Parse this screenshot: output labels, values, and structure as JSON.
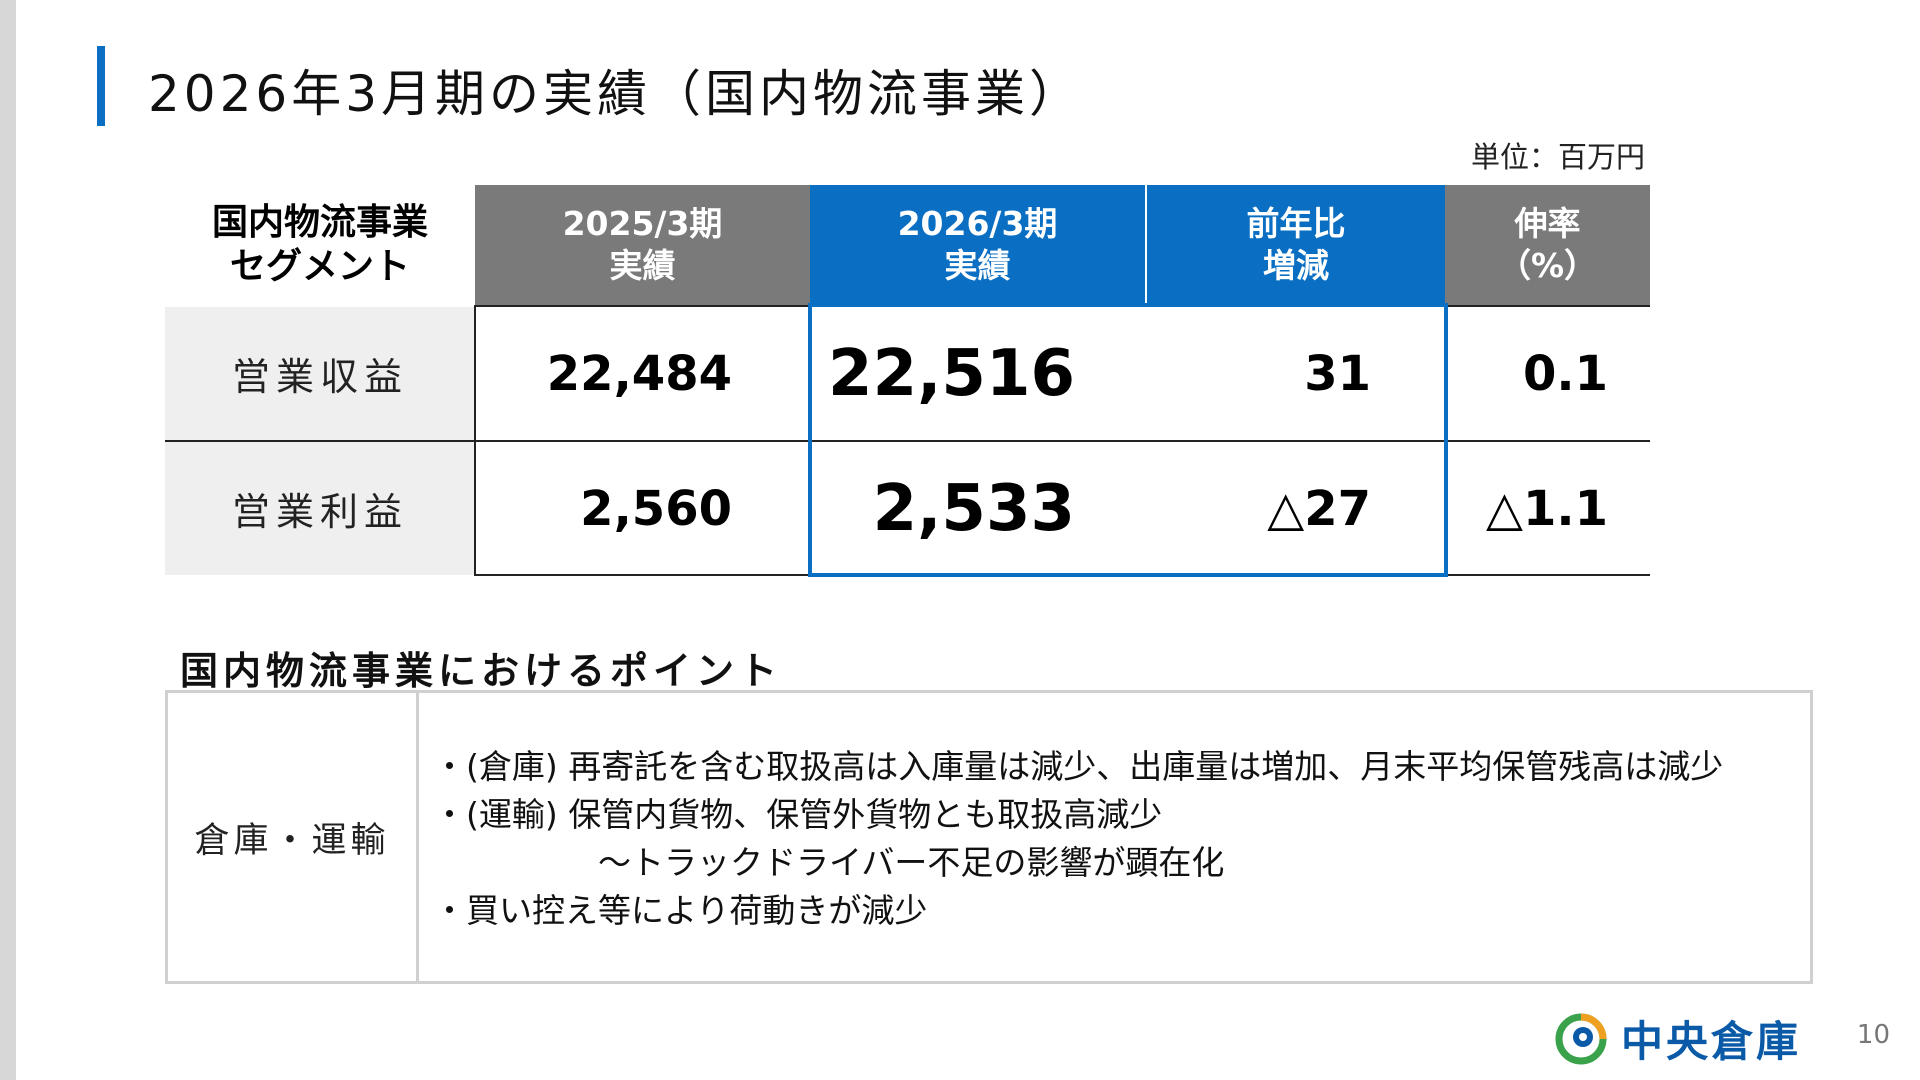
{
  "slide": {
    "title": "2026年3月期の実績（国内物流事業）",
    "unit_label": "単位：百万円",
    "page_number": "10"
  },
  "results_table": {
    "segment_header": [
      "国内物流事業",
      "セグメント"
    ],
    "columns": [
      {
        "line1": "2025/3期",
        "line2": "実績"
      },
      {
        "line1": "2026/3期",
        "line2": "実績"
      },
      {
        "line1": "前年比",
        "line2": "増減"
      },
      {
        "line1": "伸率",
        "line2": "（%）"
      }
    ],
    "rows": [
      {
        "label": "営業収益",
        "values": [
          "22,484",
          "22,516",
          "31",
          "0.1"
        ]
      },
      {
        "label": "営業利益",
        "values": [
          "2,560",
          "2,533",
          "△27",
          "△1.1"
        ]
      }
    ]
  },
  "points": {
    "heading": "国内物流事業におけるポイント",
    "category": "倉庫・運輸",
    "lines": [
      "・(倉庫) 再寄託を含む取扱高は入庫量は減少、出庫量は増加、月末平均保管残高は減少",
      "・(運輸) 保管内貨物、保管外貨物とも取扱高減少",
      "～トラックドライバー不足の影響が顕在化",
      "・買い控え等により荷動きが減少"
    ]
  },
  "logo": {
    "text": "中央倉庫",
    "icon": "company-logo-mark"
  },
  "colors": {
    "accent": "#0a6fc2",
    "header_grey": "#7a7a7a",
    "label_bg": "#efefef"
  }
}
